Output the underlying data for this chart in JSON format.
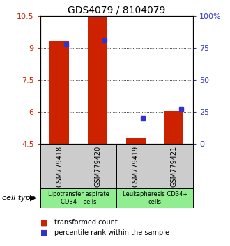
{
  "title": "GDS4079 / 8104079",
  "samples": [
    "GSM779418",
    "GSM779420",
    "GSM779419",
    "GSM779421"
  ],
  "bar_values": [
    9.32,
    10.43,
    4.8,
    6.05
  ],
  "percentile_values": [
    78.0,
    81.0,
    20.0,
    27.0
  ],
  "ylim_left": [
    4.5,
    10.5
  ],
  "ylim_right": [
    0,
    100
  ],
  "yticks_left": [
    4.5,
    6.0,
    7.5,
    9.0,
    10.5
  ],
  "yticks_right": [
    0,
    25,
    50,
    75,
    100
  ],
  "ytick_labels_left": [
    "4.5",
    "6",
    "7.5",
    "9",
    "10.5"
  ],
  "ytick_labels_right": [
    "0",
    "25",
    "50",
    "75",
    "100%"
  ],
  "bar_color": "#cc2200",
  "percentile_color": "#3333cc",
  "groups": [
    {
      "label": "Lipotransfer aspirate\nCD34+ cells",
      "indices": [
        0,
        1
      ],
      "color": "#90ee90"
    },
    {
      "label": "Leukapheresis CD34+\ncells",
      "indices": [
        2,
        3
      ],
      "color": "#90ee90"
    }
  ],
  "sample_box_color": "#cccccc",
  "legend_items": [
    {
      "label": "transformed count",
      "color": "#cc2200"
    },
    {
      "label": "percentile rank within the sample",
      "color": "#3333cc"
    }
  ],
  "cell_type_label": "cell type",
  "bar_width": 0.5,
  "title_fontsize": 10,
  "tick_fontsize": 8,
  "label_fontsize": 7,
  "legend_fontsize": 8
}
